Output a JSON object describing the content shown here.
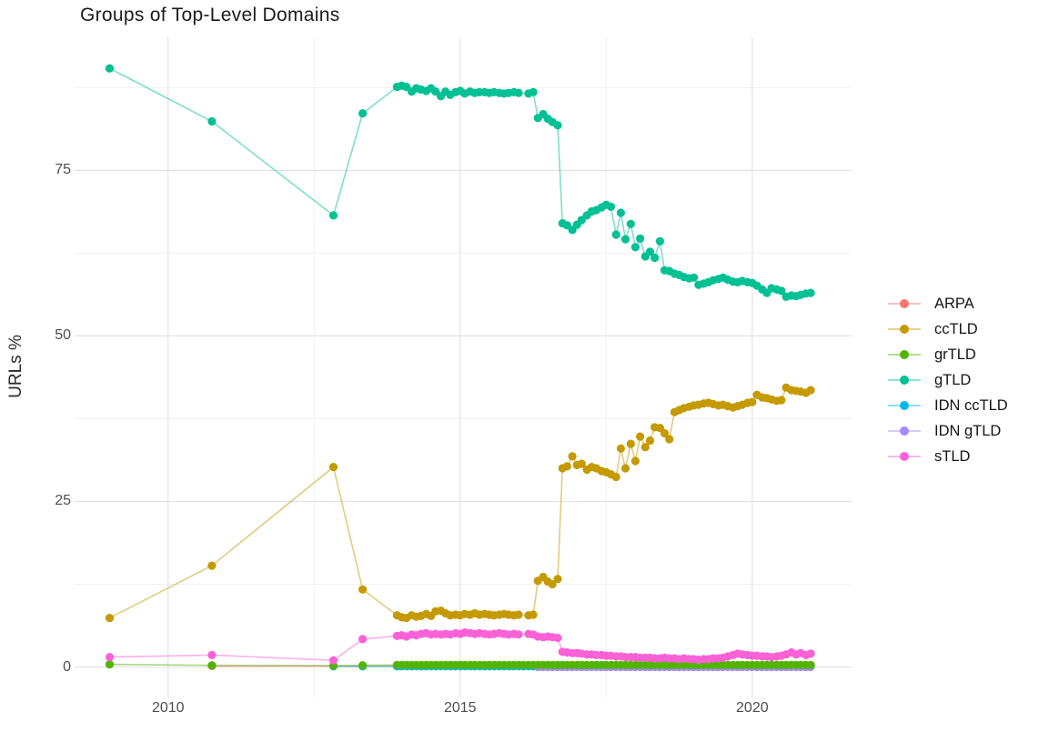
{
  "chart_data": {
    "type": "line",
    "title": "Groups of Top-Level Domains",
    "xlabel": "",
    "ylabel": "URLs %",
    "xlim": [
      2008.4,
      2021.7
    ],
    "ylim": [
      -4.6,
      95.1
    ],
    "xticks": [
      2010,
      2015,
      2020
    ],
    "xticks_minor": [
      2012.5,
      2017.5
    ],
    "yticks": [
      0,
      25,
      50,
      75
    ],
    "yticks_minor": [
      12.5,
      37.5,
      62.5,
      87.5
    ],
    "grid": true,
    "legend_position": "right",
    "point_radius": 4.6,
    "line_opacity": 0.5,
    "grid_major_color": "#e3e3e3",
    "grid_minor_color": "#f0f0f0",
    "draw_order": [
      "ARPA",
      "IDN ccTLD",
      "IDN gTLD",
      "grTLD",
      "ccTLD",
      "gTLD",
      "sTLD"
    ],
    "series": [
      {
        "name": "ARPA",
        "color": "#F8766D",
        "points": [
          [
            2010.75,
            0.15
          ],
          [
            2012.83,
            0.15
          ],
          [
            2013.33,
            0.15
          ]
        ],
        "run": {
          "from": 2013.92,
          "to": 2021.0,
          "step": 0.0833,
          "value": 0.15
        }
      },
      {
        "name": "ccTLD",
        "color": "#C49A00",
        "points": [
          [
            2009.0,
            7.4
          ],
          [
            2010.75,
            15.3
          ],
          [
            2012.83,
            30.2
          ],
          [
            2013.33,
            11.7
          ],
          [
            2013.92,
            7.8
          ],
          [
            2014.0,
            7.5
          ],
          [
            2014.08,
            7.4
          ],
          [
            2014.17,
            7.8
          ],
          [
            2014.25,
            7.6
          ],
          [
            2014.33,
            7.7
          ],
          [
            2014.42,
            8.0
          ],
          [
            2014.5,
            7.7
          ],
          [
            2014.58,
            8.4
          ],
          [
            2014.67,
            8.5
          ],
          [
            2014.75,
            8.1
          ],
          [
            2014.83,
            7.8
          ],
          [
            2014.92,
            7.9
          ],
          [
            2015.0,
            7.8
          ],
          [
            2015.08,
            8.0
          ],
          [
            2015.17,
            7.9
          ],
          [
            2015.25,
            8.1
          ],
          [
            2015.33,
            7.9
          ],
          [
            2015.42,
            8.0
          ],
          [
            2015.5,
            7.9
          ],
          [
            2015.58,
            7.8
          ],
          [
            2015.67,
            7.9
          ],
          [
            2015.75,
            8.0
          ],
          [
            2015.83,
            7.9
          ],
          [
            2015.92,
            7.8
          ],
          [
            2016.0,
            7.9
          ],
          [
            2016.17,
            7.8
          ],
          [
            2016.25,
            7.9
          ],
          [
            2016.33,
            13.0
          ],
          [
            2016.42,
            13.6
          ],
          [
            2016.5,
            12.9
          ],
          [
            2016.58,
            12.5
          ],
          [
            2016.67,
            13.3
          ],
          [
            2016.75,
            30.0
          ],
          [
            2016.83,
            30.3
          ],
          [
            2016.92,
            31.8
          ],
          [
            2017.0,
            30.5
          ],
          [
            2017.08,
            30.7
          ],
          [
            2017.17,
            29.8
          ],
          [
            2017.25,
            30.2
          ],
          [
            2017.33,
            30.0
          ],
          [
            2017.42,
            29.6
          ],
          [
            2017.5,
            29.4
          ],
          [
            2017.58,
            29.1
          ],
          [
            2017.67,
            28.7
          ],
          [
            2017.75,
            33.0
          ],
          [
            2017.83,
            30.0
          ],
          [
            2017.92,
            33.7
          ],
          [
            2018.0,
            31.1
          ],
          [
            2018.08,
            34.8
          ],
          [
            2018.17,
            33.2
          ],
          [
            2018.25,
            34.2
          ],
          [
            2018.33,
            36.2
          ],
          [
            2018.42,
            36.1
          ],
          [
            2018.5,
            35.3
          ],
          [
            2018.58,
            34.4
          ],
          [
            2018.67,
            38.5
          ],
          [
            2018.75,
            38.8
          ],
          [
            2018.83,
            39.1
          ],
          [
            2018.92,
            39.3
          ],
          [
            2019.0,
            39.5
          ],
          [
            2019.08,
            39.6
          ],
          [
            2019.17,
            39.8
          ],
          [
            2019.25,
            39.9
          ],
          [
            2019.33,
            39.7
          ],
          [
            2019.42,
            39.5
          ],
          [
            2019.5,
            39.6
          ],
          [
            2019.58,
            39.4
          ],
          [
            2019.67,
            39.2
          ],
          [
            2019.75,
            39.4
          ],
          [
            2019.83,
            39.6
          ],
          [
            2019.92,
            39.9
          ],
          [
            2020.0,
            40.0
          ],
          [
            2020.08,
            41.1
          ],
          [
            2020.17,
            40.7
          ],
          [
            2020.25,
            40.6
          ],
          [
            2020.33,
            40.4
          ],
          [
            2020.42,
            40.2
          ],
          [
            2020.5,
            40.3
          ],
          [
            2020.58,
            42.2
          ],
          [
            2020.67,
            41.8
          ],
          [
            2020.75,
            41.7
          ],
          [
            2020.83,
            41.6
          ],
          [
            2020.92,
            41.4
          ],
          [
            2021.0,
            41.8
          ]
        ]
      },
      {
        "name": "grTLD",
        "color": "#53B400",
        "points": [
          [
            2009.0,
            0.4
          ],
          [
            2010.75,
            0.25
          ],
          [
            2012.83,
            0.2
          ],
          [
            2013.33,
            0.25
          ]
        ],
        "run": {
          "from": 2013.92,
          "to": 2021.0,
          "step": 0.0833,
          "value": 0.3
        }
      },
      {
        "name": "gTLD",
        "color": "#00C094",
        "points": [
          [
            2009.0,
            90.4
          ],
          [
            2010.75,
            82.4
          ],
          [
            2012.83,
            68.2
          ],
          [
            2013.33,
            83.6
          ],
          [
            2013.92,
            87.6
          ],
          [
            2014.0,
            87.8
          ],
          [
            2014.08,
            87.6
          ],
          [
            2014.17,
            86.9
          ],
          [
            2014.25,
            87.4
          ],
          [
            2014.33,
            87.2
          ],
          [
            2014.42,
            87.0
          ],
          [
            2014.5,
            87.4
          ],
          [
            2014.58,
            86.9
          ],
          [
            2014.67,
            86.2
          ],
          [
            2014.75,
            86.9
          ],
          [
            2014.83,
            86.4
          ],
          [
            2014.92,
            86.8
          ],
          [
            2015.0,
            87.0
          ],
          [
            2015.08,
            86.6
          ],
          [
            2015.17,
            86.9
          ],
          [
            2015.25,
            86.7
          ],
          [
            2015.33,
            86.8
          ],
          [
            2015.42,
            86.8
          ],
          [
            2015.5,
            86.7
          ],
          [
            2015.58,
            86.8
          ],
          [
            2015.67,
            86.7
          ],
          [
            2015.75,
            86.6
          ],
          [
            2015.83,
            86.7
          ],
          [
            2015.92,
            86.8
          ],
          [
            2016.0,
            86.7
          ],
          [
            2016.17,
            86.6
          ],
          [
            2016.25,
            86.8
          ],
          [
            2016.33,
            82.9
          ],
          [
            2016.42,
            83.5
          ],
          [
            2016.5,
            82.8
          ],
          [
            2016.58,
            82.3
          ],
          [
            2016.67,
            81.8
          ],
          [
            2016.75,
            67.0
          ],
          [
            2016.83,
            66.7
          ],
          [
            2016.92,
            66.0
          ],
          [
            2017.0,
            66.8
          ],
          [
            2017.08,
            67.5
          ],
          [
            2017.17,
            68.2
          ],
          [
            2017.25,
            68.8
          ],
          [
            2017.33,
            69.0
          ],
          [
            2017.42,
            69.4
          ],
          [
            2017.5,
            69.8
          ],
          [
            2017.58,
            69.5
          ],
          [
            2017.67,
            65.3
          ],
          [
            2017.75,
            68.6
          ],
          [
            2017.83,
            64.6
          ],
          [
            2017.92,
            66.9
          ],
          [
            2018.0,
            63.4
          ],
          [
            2018.08,
            64.7
          ],
          [
            2018.17,
            62.0
          ],
          [
            2018.25,
            62.7
          ],
          [
            2018.33,
            61.8
          ],
          [
            2018.42,
            64.3
          ],
          [
            2018.5,
            59.9
          ],
          [
            2018.58,
            59.8
          ],
          [
            2018.67,
            59.4
          ],
          [
            2018.75,
            59.2
          ],
          [
            2018.83,
            58.9
          ],
          [
            2018.92,
            58.7
          ],
          [
            2019.0,
            58.8
          ],
          [
            2019.08,
            57.7
          ],
          [
            2019.17,
            57.9
          ],
          [
            2019.25,
            58.1
          ],
          [
            2019.33,
            58.4
          ],
          [
            2019.42,
            58.6
          ],
          [
            2019.5,
            58.8
          ],
          [
            2019.58,
            58.5
          ],
          [
            2019.67,
            58.2
          ],
          [
            2019.75,
            58.1
          ],
          [
            2019.83,
            58.3
          ],
          [
            2019.92,
            58.1
          ],
          [
            2020.0,
            58.0
          ],
          [
            2020.08,
            57.6
          ],
          [
            2020.17,
            57.0
          ],
          [
            2020.25,
            56.5
          ],
          [
            2020.33,
            57.2
          ],
          [
            2020.42,
            57.0
          ],
          [
            2020.5,
            56.8
          ],
          [
            2020.58,
            55.9
          ],
          [
            2020.67,
            56.1
          ],
          [
            2020.75,
            56.0
          ],
          [
            2020.83,
            56.2
          ],
          [
            2020.92,
            56.4
          ],
          [
            2021.0,
            56.5
          ]
        ]
      },
      {
        "name": "IDN ccTLD",
        "color": "#00B6EB",
        "points": [
          [
            2012.83,
            0.1
          ],
          [
            2013.33,
            0.1
          ]
        ],
        "run": {
          "from": 2013.92,
          "to": 2021.0,
          "step": 0.0833,
          "value": 0.1
        }
      },
      {
        "name": "IDN gTLD",
        "color": "#A58AFF",
        "points": [],
        "run": {
          "from": 2016.33,
          "to": 2021.0,
          "step": 0.0833,
          "value": 0.0
        }
      },
      {
        "name": "sTLD",
        "color": "#FB61D7",
        "points": [
          [
            2009.0,
            1.5
          ],
          [
            2010.75,
            1.8
          ],
          [
            2012.83,
            1.0
          ],
          [
            2013.33,
            4.2
          ],
          [
            2013.92,
            4.7
          ],
          [
            2014.0,
            4.8
          ],
          [
            2014.08,
            4.6
          ],
          [
            2014.17,
            4.9
          ],
          [
            2014.25,
            4.8
          ],
          [
            2014.33,
            5.0
          ],
          [
            2014.42,
            5.1
          ],
          [
            2014.5,
            4.9
          ],
          [
            2014.58,
            5.0
          ],
          [
            2014.67,
            4.9
          ],
          [
            2014.75,
            5.0
          ],
          [
            2014.83,
            4.9
          ],
          [
            2014.92,
            5.1
          ],
          [
            2015.0,
            5.0
          ],
          [
            2015.08,
            5.2
          ],
          [
            2015.17,
            5.1
          ],
          [
            2015.25,
            5.0
          ],
          [
            2015.33,
            5.1
          ],
          [
            2015.42,
            5.0
          ],
          [
            2015.5,
            4.9
          ],
          [
            2015.58,
            5.0
          ],
          [
            2015.67,
            5.1
          ],
          [
            2015.75,
            5.0
          ],
          [
            2015.83,
            4.9
          ],
          [
            2015.92,
            5.0
          ],
          [
            2016.0,
            4.9
          ],
          [
            2016.17,
            5.0
          ],
          [
            2016.25,
            4.9
          ],
          [
            2016.33,
            4.6
          ],
          [
            2016.42,
            4.5
          ],
          [
            2016.5,
            4.6
          ],
          [
            2016.58,
            4.5
          ],
          [
            2016.67,
            4.4
          ],
          [
            2016.75,
            2.3
          ],
          [
            2016.83,
            2.2
          ],
          [
            2016.92,
            2.1
          ],
          [
            2017.0,
            2.1
          ],
          [
            2017.08,
            2.0
          ],
          [
            2017.17,
            1.9
          ],
          [
            2017.25,
            1.9
          ],
          [
            2017.33,
            1.8
          ],
          [
            2017.42,
            1.8
          ],
          [
            2017.5,
            1.7
          ],
          [
            2017.58,
            1.7
          ],
          [
            2017.67,
            1.6
          ],
          [
            2017.75,
            1.6
          ],
          [
            2017.83,
            1.5
          ],
          [
            2017.92,
            1.5
          ],
          [
            2018.0,
            1.5
          ],
          [
            2018.08,
            1.4
          ],
          [
            2018.17,
            1.4
          ],
          [
            2018.25,
            1.4
          ],
          [
            2018.33,
            1.3
          ],
          [
            2018.42,
            1.3
          ],
          [
            2018.5,
            1.4
          ],
          [
            2018.58,
            1.3
          ],
          [
            2018.67,
            1.3
          ],
          [
            2018.75,
            1.2
          ],
          [
            2018.83,
            1.3
          ],
          [
            2018.92,
            1.2
          ],
          [
            2019.0,
            1.2
          ],
          [
            2019.08,
            1.1
          ],
          [
            2019.17,
            1.2
          ],
          [
            2019.25,
            1.2
          ],
          [
            2019.33,
            1.3
          ],
          [
            2019.42,
            1.3
          ],
          [
            2019.5,
            1.4
          ],
          [
            2019.58,
            1.6
          ],
          [
            2019.67,
            1.8
          ],
          [
            2019.75,
            2.0
          ],
          [
            2019.83,
            1.9
          ],
          [
            2019.92,
            1.8
          ],
          [
            2020.0,
            1.7
          ],
          [
            2020.08,
            1.7
          ],
          [
            2020.17,
            1.6
          ],
          [
            2020.25,
            1.6
          ],
          [
            2020.33,
            1.5
          ],
          [
            2020.42,
            1.6
          ],
          [
            2020.5,
            1.7
          ],
          [
            2020.58,
            1.9
          ],
          [
            2020.67,
            2.2
          ],
          [
            2020.75,
            1.9
          ],
          [
            2020.83,
            2.1
          ],
          [
            2020.92,
            1.8
          ],
          [
            2021.0,
            2.0
          ]
        ]
      }
    ]
  }
}
